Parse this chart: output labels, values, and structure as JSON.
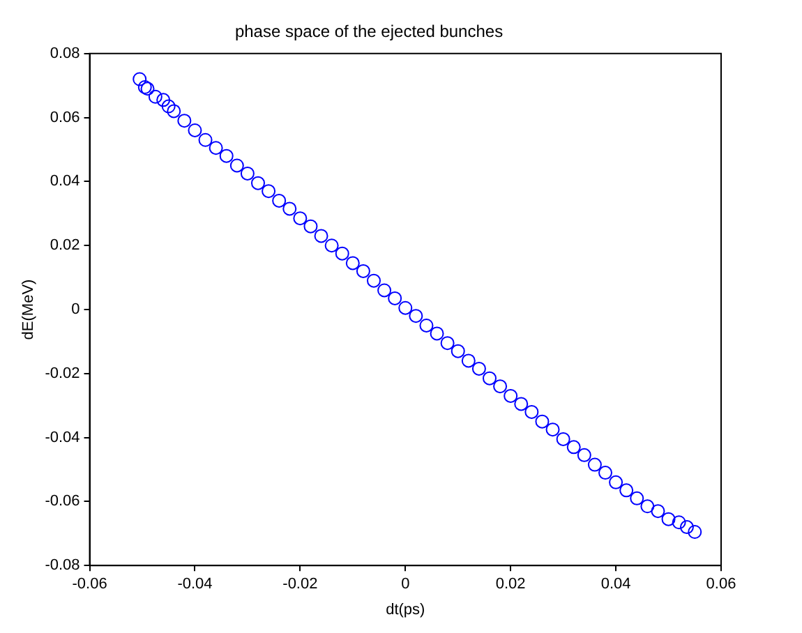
{
  "chart_data": {
    "type": "scatter",
    "title": "phase space of the ejected bunches",
    "xlabel": "dt(ps)",
    "ylabel": "dE(MeV)",
    "marker": "circle",
    "grid": false,
    "legend": false,
    "xlim": [
      -0.06,
      0.06
    ],
    "xticks": [
      -0.06,
      -0.04,
      -0.02,
      0,
      0.02,
      0.04,
      0.06
    ],
    "ylim": [
      -0.08,
      0.08
    ],
    "yticks": [
      -0.08,
      -0.06,
      -0.04,
      -0.02,
      0,
      0.02,
      0.04,
      0.06,
      0.08
    ],
    "series": [
      {
        "color": "#0000ff",
        "x": [
          -0.0505,
          -0.0495,
          -0.049,
          -0.0475,
          -0.046,
          -0.045,
          -0.044,
          -0.042,
          -0.04,
          -0.038,
          -0.036,
          -0.034,
          -0.032,
          -0.03,
          -0.028,
          -0.026,
          -0.024,
          -0.022,
          -0.02,
          -0.018,
          -0.016,
          -0.014,
          -0.012,
          -0.01,
          -0.008,
          -0.006,
          -0.004,
          -0.002,
          0,
          0.002,
          0.004,
          0.006,
          0.008,
          0.01,
          0.012,
          0.014,
          0.016,
          0.018,
          0.02,
          0.022,
          0.024,
          0.026,
          0.028,
          0.03,
          0.032,
          0.034,
          0.036,
          0.038,
          0.04,
          0.042,
          0.044,
          0.046,
          0.048,
          0.05,
          0.052,
          0.0535,
          0.055
        ],
        "values": [
          0.072,
          0.0695,
          0.069,
          0.0665,
          0.0655,
          0.0635,
          0.062,
          0.059,
          0.056,
          0.053,
          0.0505,
          0.048,
          0.045,
          0.0425,
          0.0395,
          0.037,
          0.034,
          0.0315,
          0.0285,
          0.026,
          0.023,
          0.02,
          0.0175,
          0.0145,
          0.012,
          0.009,
          0.006,
          0.0035,
          0.0005,
          -0.002,
          -0.005,
          -0.0075,
          -0.0105,
          -0.013,
          -0.016,
          -0.0185,
          -0.0215,
          -0.024,
          -0.027,
          -0.0295,
          -0.032,
          -0.035,
          -0.0375,
          -0.0405,
          -0.043,
          -0.0455,
          -0.0485,
          -0.051,
          -0.054,
          -0.0565,
          -0.059,
          -0.0615,
          -0.063,
          -0.0655,
          -0.0665,
          -0.068,
          -0.0695
        ]
      }
    ]
  }
}
